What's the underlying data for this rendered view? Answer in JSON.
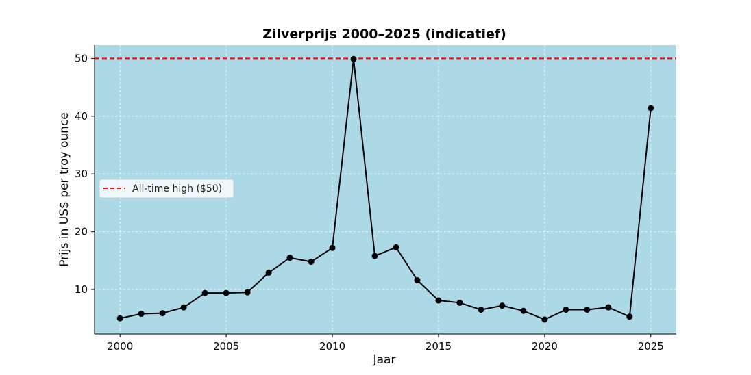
{
  "chart_data": {
    "type": "line",
    "title": "Zilverprijs 2000–2025 (indicatief)",
    "xlabel": "Jaar",
    "ylabel": "Prijs in US$ per troy ounce",
    "xlim": [
      1998.8,
      2026.2
    ],
    "ylim": [
      2.3,
      52.3
    ],
    "xticks": [
      2000,
      2005,
      2010,
      2015,
      2020,
      2025
    ],
    "yticks": [
      10,
      20,
      30,
      40,
      50
    ],
    "grid": true,
    "background_color": "#ADD8E6",
    "series": [
      {
        "color": "#000000",
        "marker": "circle",
        "x": [
          2000,
          2001,
          2002,
          2003,
          2004,
          2005,
          2006,
          2007,
          2008,
          2009,
          2010,
          2011,
          2012,
          2013,
          2014,
          2015,
          2016,
          2017,
          2018,
          2019,
          2020,
          2021,
          2022,
          2023,
          2024,
          2025
        ],
        "y": [
          5.0,
          5.8,
          5.9,
          6.9,
          9.4,
          9.4,
          9.5,
          12.9,
          15.5,
          14.8,
          17.2,
          49.9,
          15.8,
          17.3,
          11.6,
          8.1,
          7.7,
          6.5,
          7.2,
          6.3,
          4.8,
          6.5,
          6.5,
          6.9,
          5.3,
          41.4
        ]
      }
    ],
    "reference_lines": [
      {
        "y": 50,
        "label": "All-time high ($50)",
        "color": "#FF0000",
        "style": "dashed"
      }
    ],
    "legend_position": "center-left"
  }
}
